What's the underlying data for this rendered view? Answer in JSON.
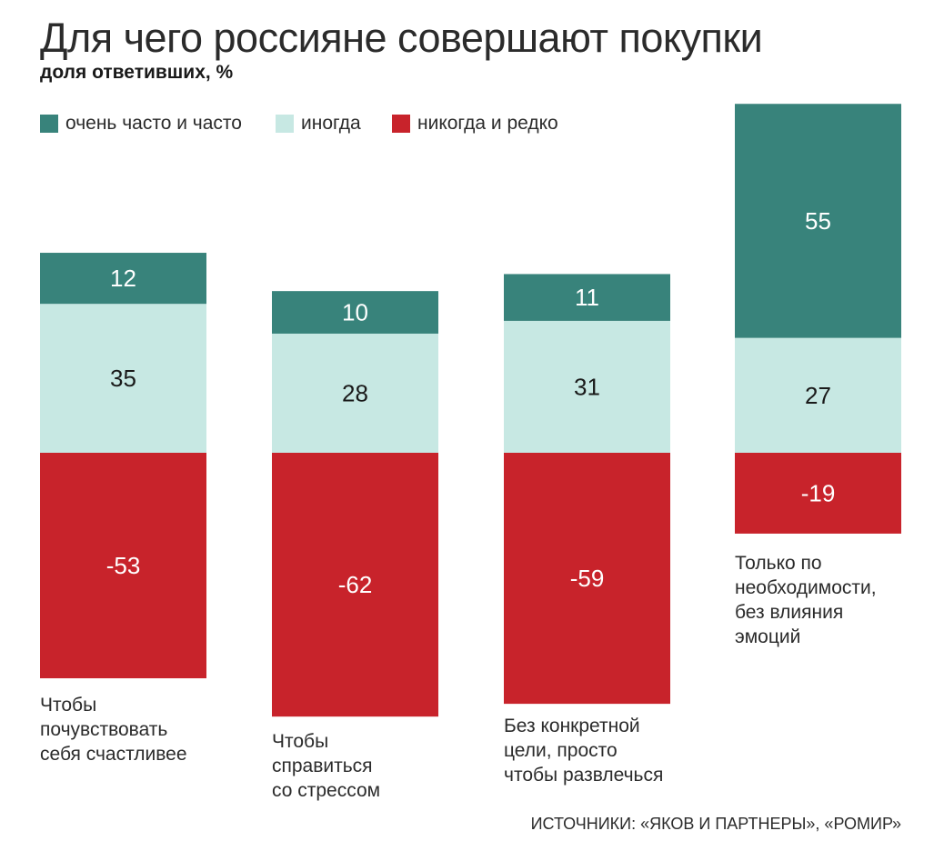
{
  "title": "Для чего россияне совершают покупки",
  "subtitle": "доля ответивших, %",
  "legend": [
    {
      "label": "очень часто и часто",
      "color": "#38837b"
    },
    {
      "label": "иногда",
      "color": "#c7e8e3"
    },
    {
      "label": "никогда и редко",
      "color": "#c8232b"
    }
  ],
  "source": "ИСТОЧНИКИ: «ЯКОВ И ПАРТНЕРЫ», «РОМИР»",
  "chart_data": {
    "type": "bar",
    "stacked": true,
    "title": "Для чего россияне совершают покупки",
    "subtitle": "доля ответивших, %",
    "categories": [
      "Чтобы почувствовать себя счастливее",
      "Чтобы справиться со стрессом",
      "Без конкретной цели, просто чтобы развлечься",
      "Только по необходимости, без влияния эмоций"
    ],
    "category_lines": [
      [
        "Чтобы",
        "почувствовать",
        "себя счастливее"
      ],
      [
        "Чтобы",
        "справиться",
        "со стрессом"
      ],
      [
        "Без конкретной",
        "цели, просто",
        "чтобы развлечься"
      ],
      [
        "Только по",
        "необходимости,",
        "без влияния",
        "эмоций"
      ]
    ],
    "series": [
      {
        "name": "очень часто и часто",
        "values": [
          12,
          10,
          11,
          55
        ],
        "color": "#38837b"
      },
      {
        "name": "иногда",
        "values": [
          35,
          28,
          31,
          27
        ],
        "color": "#c7e8e3"
      },
      {
        "name": "никогда и редко",
        "values": [
          -53,
          -62,
          -59,
          -19
        ],
        "color": "#c8232b"
      }
    ],
    "ylim": [
      -62,
      82
    ],
    "grid": false,
    "legend_position": "top-left"
  }
}
